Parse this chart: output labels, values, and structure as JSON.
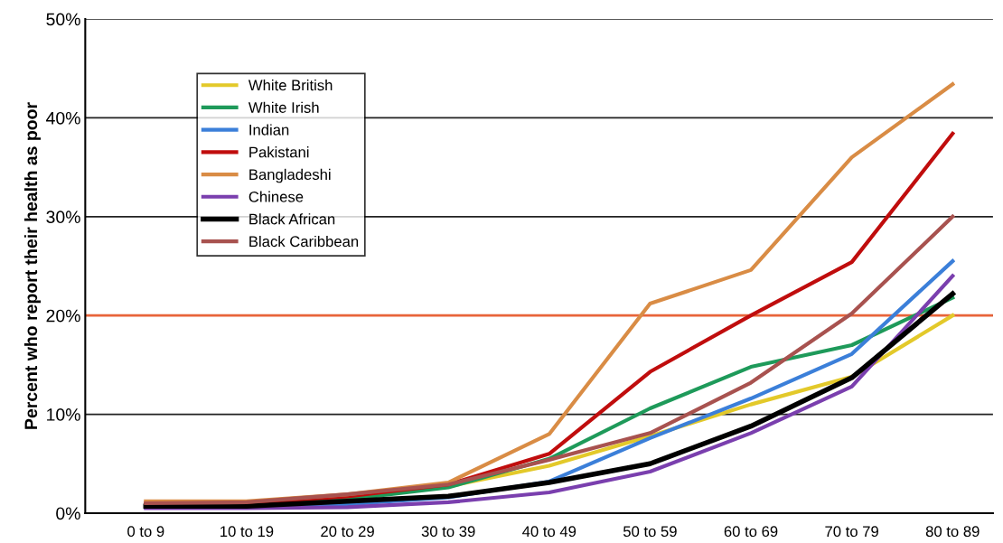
{
  "chart_data": {
    "type": "line",
    "ylabel": "Percent who report their health as poor",
    "categories": [
      "0 to 9",
      "10 to 19",
      "20 to 29",
      "30 to 39",
      "40 to 49",
      "50 to 59",
      "60 to 69",
      "70 to 79",
      "80 to 89"
    ],
    "ylim": [
      0,
      50
    ],
    "yticks": [
      {
        "value": 0,
        "label": "0%"
      },
      {
        "value": 10,
        "label": "10%"
      },
      {
        "value": 20,
        "label": "20%"
      },
      {
        "value": 30,
        "label": "30%"
      },
      {
        "value": 40,
        "label": "40%"
      },
      {
        "value": 50,
        "label": "50%"
      }
    ],
    "grid": "y",
    "legend": "top left",
    "marker": "none",
    "line_style": "solid",
    "ref_lines": [
      {
        "axis": "y",
        "value": 20,
        "color": "#e8643a"
      }
    ],
    "series": [
      {
        "name": "White British",
        "color": "#e3c92a",
        "values": [
          null,
          null,
          null,
          2.7,
          4.8,
          7.8,
          11.0,
          13.8,
          20.0
        ]
      },
      {
        "name": "White Irish",
        "color": "#1e9a5a",
        "values": [
          0.8,
          0.9,
          1.4,
          2.6,
          5.5,
          10.6,
          14.8,
          17.0,
          21.8
        ]
      },
      {
        "name": "Indian",
        "color": "#3b7fd9",
        "values": [
          0.6,
          0.6,
          0.9,
          1.6,
          3.2,
          7.6,
          11.6,
          16.1,
          25.5
        ]
      },
      {
        "name": "Pakistani",
        "color": "#c00d0d",
        "values": [
          1.0,
          1.0,
          1.7,
          2.9,
          6.0,
          14.3,
          20.0,
          25.4,
          38.4
        ]
      },
      {
        "name": "Bangladeshi",
        "color": "#d98c45",
        "values": [
          1.2,
          1.2,
          1.9,
          3.1,
          8.0,
          21.2,
          24.6,
          36.0,
          43.4
        ]
      },
      {
        "name": "Chinese",
        "color": "#7a3fae",
        "values": [
          0.5,
          0.5,
          0.6,
          1.1,
          2.1,
          4.2,
          8.1,
          12.8,
          24.0
        ]
      },
      {
        "name": "Black African",
        "color": "#000000",
        "values": [
          0.7,
          0.7,
          1.2,
          1.7,
          3.1,
          5.0,
          8.8,
          13.7,
          22.2
        ]
      },
      {
        "name": "Black Caribbean",
        "color": "#a8524f",
        "values": [
          1.0,
          1.1,
          1.9,
          2.9,
          5.4,
          8.1,
          13.2,
          20.2,
          30.0
        ]
      }
    ]
  }
}
